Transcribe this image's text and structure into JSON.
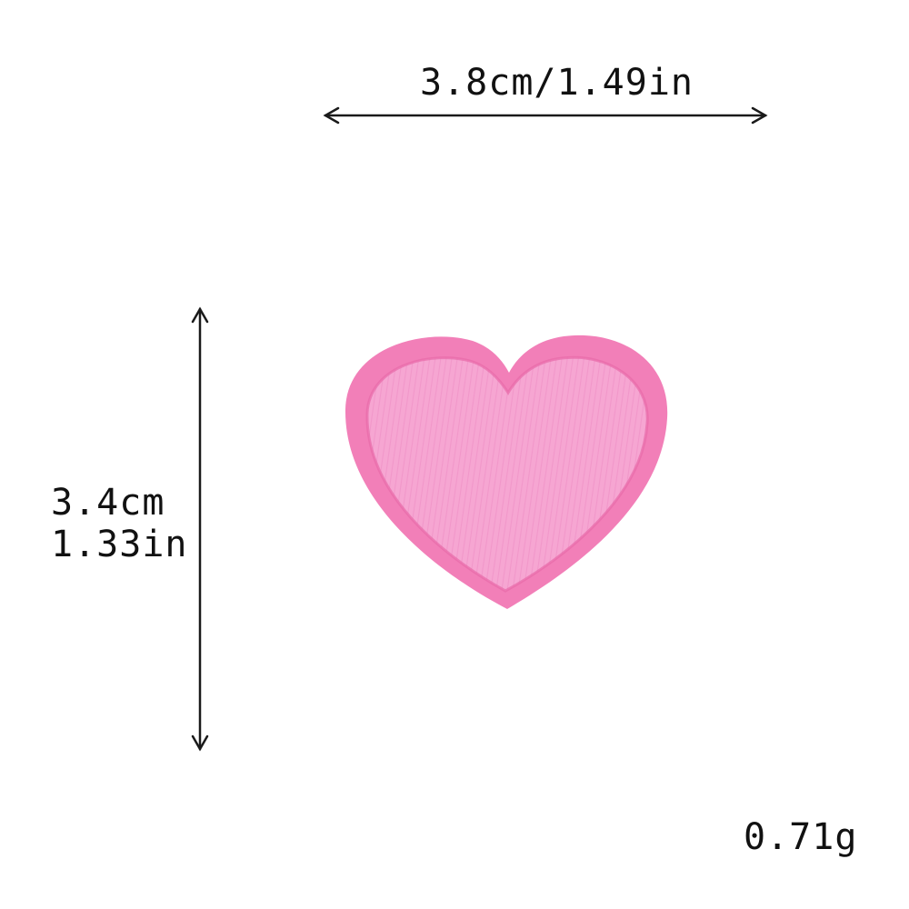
{
  "dimensions": {
    "width_label": "3.8cm/1.49in",
    "height_label_cm": "3.4cm",
    "height_label_in": "1.33in"
  },
  "weight_label": "0.71g",
  "product": {
    "icon": "heart-patch-icon",
    "colors": {
      "border": "#f27fb8",
      "fill": "#f6a6d2",
      "stitch": "#e86aa8"
    }
  },
  "arrow_color": "#1a1a1a"
}
